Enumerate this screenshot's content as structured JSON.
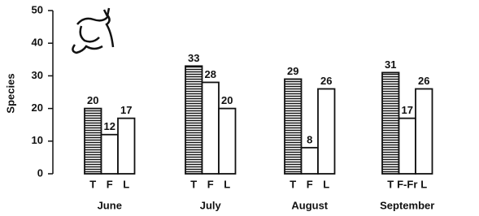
{
  "chart_data": {
    "type": "grouped-bar",
    "ylabel": "Species",
    "categories": [
      "June",
      "July",
      "August",
      "September"
    ],
    "bar_labels": [
      [
        "T",
        "F",
        "L"
      ],
      [
        "T",
        "F",
        "L"
      ],
      [
        "T",
        "F",
        "L"
      ],
      [
        "T",
        "F-Fr",
        "L"
      ]
    ],
    "values": [
      [
        20,
        12,
        17
      ],
      [
        33,
        28,
        20
      ],
      [
        29,
        8,
        26
      ],
      [
        31,
        17,
        26
      ]
    ],
    "ylim": [
      0,
      50
    ],
    "yticks": [
      0,
      10,
      20,
      30,
      40,
      50
    ]
  }
}
